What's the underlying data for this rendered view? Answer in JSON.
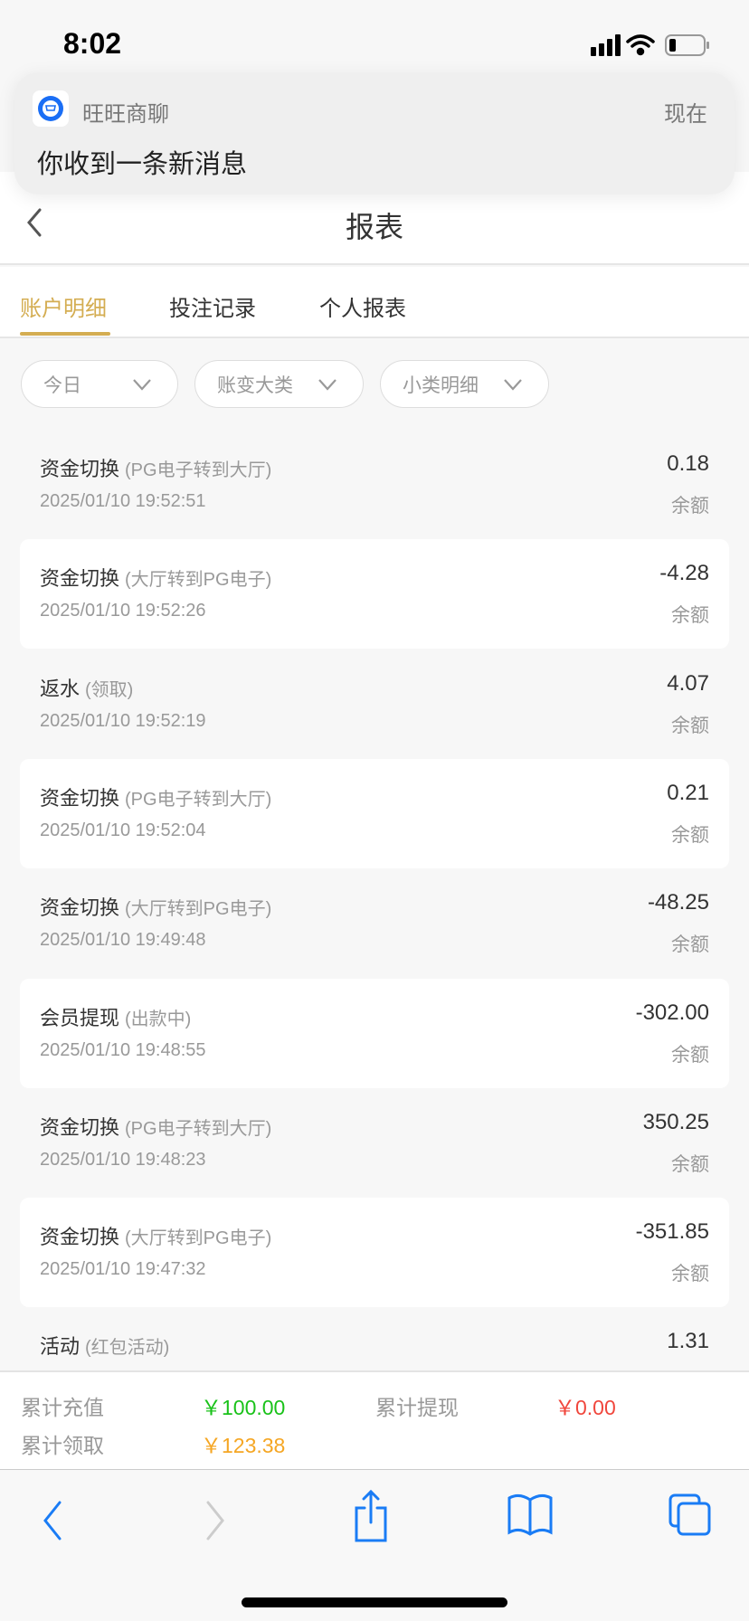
{
  "status_bar": {
    "time": "8:02"
  },
  "notification": {
    "app": "旺旺商聊",
    "time": "现在",
    "message": "你收到一条新消息"
  },
  "header": {
    "title": "报表"
  },
  "tabs": [
    {
      "label": "账户明细",
      "active": true
    },
    {
      "label": "投注记录"
    },
    {
      "label": "个人报表"
    }
  ],
  "filters": [
    "今日",
    "账变大类",
    "小类明细"
  ],
  "records": [
    {
      "title": "资金切换",
      "sub": "(PG电子转到大厅)",
      "date": "2025/01/10 19:52:51",
      "amount": "0.18",
      "balance": "余额"
    },
    {
      "title": "资金切换",
      "sub": "(大厅转到PG电子)",
      "date": "2025/01/10 19:52:26",
      "amount": "-4.28",
      "balance": "余额"
    },
    {
      "title": "返水",
      "sub": "(领取)",
      "date": "2025/01/10 19:52:19",
      "amount": "4.07",
      "balance": "余额"
    },
    {
      "title": "资金切换",
      "sub": "(PG电子转到大厅)",
      "date": "2025/01/10 19:52:04",
      "amount": "0.21",
      "balance": "余额"
    },
    {
      "title": "资金切换",
      "sub": "(大厅转到PG电子)",
      "date": "2025/01/10 19:49:48",
      "amount": "-48.25",
      "balance": "余额"
    },
    {
      "title": "会员提现",
      "sub": "(出款中)",
      "date": "2025/01/10 19:48:55",
      "amount": "-302.00",
      "balance": "余额"
    },
    {
      "title": "资金切换",
      "sub": "(PG电子转到大厅)",
      "date": "2025/01/10 19:48:23",
      "amount": "350.25",
      "balance": "余额"
    },
    {
      "title": "资金切换",
      "sub": "(大厅转到PG电子)",
      "date": "2025/01/10 19:47:32",
      "amount": "-351.85",
      "balance": "余额"
    },
    {
      "title": "活动",
      "sub": "(红包活动)",
      "date": "",
      "amount": "1.31",
      "balance": ""
    }
  ],
  "summary": {
    "recharge_label": "累计充值",
    "recharge_value": "￥100.00",
    "withdraw_label": "累计提现",
    "withdraw_value": "￥0.00",
    "claim_label": "累计领取",
    "claim_value": "￥123.38"
  },
  "colors": {
    "accent": "#d4ad52",
    "green": "#19c219",
    "red": "#f0463c",
    "orange": "#f5a623",
    "ios_blue": "#1a7cf5"
  }
}
